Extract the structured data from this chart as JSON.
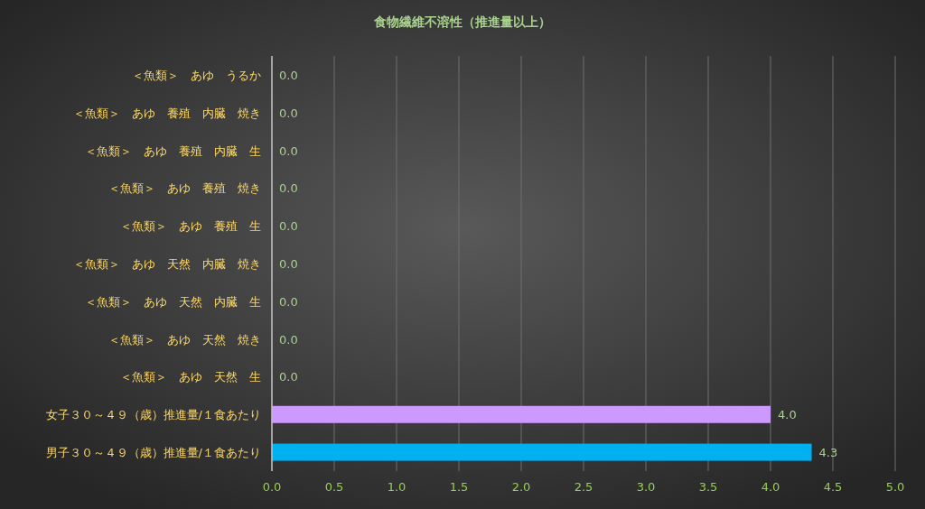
{
  "chart_data": {
    "type": "bar",
    "orientation": "horizontal",
    "title": "食物繊維不溶性（推進量以上）",
    "categories": [
      "＜魚類＞　あゆ　うるか",
      "＜魚類＞　あゆ　養殖　内臓　焼き",
      "＜魚類＞　あゆ　養殖　内臓　生",
      "＜魚類＞　あゆ　養殖　焼き",
      "＜魚類＞　あゆ　養殖　生",
      "＜魚類＞　あゆ　天然　内臓　焼き",
      "＜魚類＞　あゆ　天然　内臓　生",
      "＜魚類＞　あゆ　天然　焼き",
      "＜魚類＞　あゆ　天然　生",
      "女子３０～４９（歳）推進量/１食あたり",
      "男子３０～４９（歳）推進量/１食あたり"
    ],
    "values": [
      0,
      0,
      0,
      0,
      0,
      0,
      0,
      0,
      0,
      4.0,
      4.33
    ],
    "value_labels": [
      "0.0",
      "0.0",
      "0.0",
      "0.0",
      "0.0",
      "0.0",
      "0.0",
      "0.0",
      "0.0",
      "4.0",
      "4.3"
    ],
    "colors": [
      "#00b0f0",
      "#00b0f0",
      "#00b0f0",
      "#00b0f0",
      "#00b0f0",
      "#00b0f0",
      "#00b0f0",
      "#00b0f0",
      "#00b0f0",
      "#cc99ff",
      "#00b0f0"
    ],
    "xlim": [
      0,
      5
    ],
    "xticks": [
      {
        "value": 0,
        "label": "0.0"
      },
      {
        "value": 0.5,
        "label": "0.5"
      },
      {
        "value": 1,
        "label": "1.0"
      },
      {
        "value": 1.5,
        "label": "1.5"
      },
      {
        "value": 2,
        "label": "2.0"
      },
      {
        "value": 2.5,
        "label": "2.5"
      },
      {
        "value": 3,
        "label": "3.0"
      },
      {
        "value": 3.5,
        "label": "3.5"
      },
      {
        "value": 4,
        "label": "4.0"
      },
      {
        "value": 4.5,
        "label": "4.5"
      },
      {
        "value": 5,
        "label": "5.0"
      }
    ],
    "grid": "x"
  }
}
